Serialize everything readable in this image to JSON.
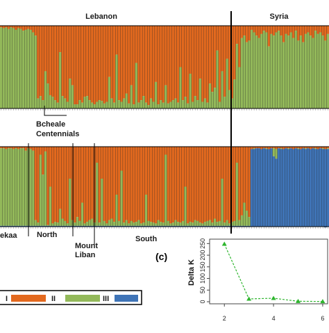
{
  "colors": {
    "I": "#e3691e",
    "II": "#93b95a",
    "III": "#3f74b7"
  },
  "labels": {
    "lebanon": "Lebanon",
    "syria": "Syria",
    "bcheale": "Bcheale",
    "centennials": "Centennials",
    "bekaa": "ekaa",
    "north": "North",
    "mount": "Mount",
    "liban": "Liban",
    "south": "South",
    "panel_c": "(c)"
  },
  "legend": [
    {
      "label": "I",
      "color": "#e3691e"
    },
    {
      "label": "II",
      "color": "#93b95a"
    },
    {
      "label": "III",
      "color": "#3f74b7"
    }
  ],
  "chart_data": [
    {
      "type": "bar",
      "subtype": "stacked-admixture",
      "K": 2,
      "series_colors": [
        "#e3691e",
        "#93b95a"
      ],
      "individuals": 134,
      "groups": [
        {
          "name": "Lebanon",
          "count": 102
        },
        {
          "name": "Syria",
          "count": 32
        }
      ],
      "orange_fraction": [
        0.02,
        0.03,
        0.02,
        0.04,
        0.02,
        0.03,
        0.05,
        0.03,
        0.04,
        0.06,
        0.05,
        0.04,
        0.05,
        0.08,
        0.12,
        0.88,
        0.85,
        0.9,
        0.55,
        0.7,
        0.84,
        0.86,
        0.9,
        0.93,
        0.32,
        0.85,
        0.88,
        0.92,
        0.64,
        0.72,
        0.95,
        0.95,
        0.9,
        0.93,
        0.86,
        0.85,
        0.9,
        0.93,
        0.95,
        0.92,
        0.9,
        0.91,
        0.94,
        0.92,
        0.62,
        0.88,
        0.93,
        0.35,
        0.9,
        0.92,
        0.88,
        0.82,
        0.94,
        0.72,
        0.95,
        0.45,
        0.93,
        0.9,
        0.85,
        0.93,
        0.96,
        0.88,
        0.92,
        0.68,
        0.95,
        0.9,
        0.93,
        0.72,
        0.94,
        0.92,
        0.9,
        0.88,
        0.93,
        0.5,
        0.9,
        0.86,
        0.94,
        0.58,
        0.92,
        0.85,
        0.9,
        0.64,
        0.92,
        0.88,
        0.93,
        0.7,
        0.8,
        0.75,
        0.3,
        0.92,
        0.55,
        0.86,
        0.4,
        0.78,
        0.88,
        0.65,
        0.22,
        0.5,
        0.15,
        0.12,
        0.2,
        0.18,
        0.05,
        0.08,
        0.12,
        0.15,
        0.1,
        0.06,
        0.08,
        0.25,
        0.1,
        0.12,
        0.08,
        0.06,
        0.12,
        0.2,
        0.1,
        0.12,
        0.08,
        0.15,
        0.06,
        0.18,
        0.12,
        0.2,
        0.1,
        0.08,
        0.12,
        0.15,
        0.06,
        0.1,
        0.08,
        0.12,
        0.18,
        0.1
      ]
    },
    {
      "type": "bar",
      "subtype": "stacked-admixture",
      "K": 3,
      "series_colors": [
        "#e3691e",
        "#93b95a",
        "#3f74b7"
      ],
      "individuals": 134,
      "groups": [
        {
          "name": "ekaa",
          "count": 14
        },
        {
          "name": "North",
          "count": 25
        },
        {
          "name": "Mount Liban",
          "count": 15
        },
        {
          "name": "South",
          "count": 48
        },
        {
          "name": "Syria",
          "count": 32
        }
      ],
      "orange_fraction": [
        0.02,
        0.02,
        0.03,
        0.02,
        0.02,
        0.03,
        0.02,
        0.03,
        0.02,
        0.02,
        0.05,
        0.02,
        0.03,
        0.05,
        0.92,
        0.95,
        0.1,
        0.35,
        0.06,
        0.98,
        0.5,
        0.96,
        0.94,
        0.95,
        0.78,
        0.9,
        0.93,
        0.96,
        0.4,
        0.92,
        0.95,
        0.88,
        0.93,
        0.7,
        0.96,
        0.94,
        0.92,
        0.9,
        0.95,
        0.2,
        0.95,
        0.4,
        0.93,
        0.96,
        0.92,
        0.9,
        0.94,
        0.6,
        0.93,
        0.3,
        0.95,
        0.92,
        0.96,
        0.93,
        0.95,
        0.94,
        0.92,
        0.96,
        0.95,
        0.6,
        0.93,
        0.94,
        0.95,
        0.96,
        0.92,
        0.94,
        0.95,
        0.1,
        0.93,
        0.96,
        0.95,
        0.92,
        0.94,
        0.95,
        0.93,
        0.5,
        0.96,
        0.94,
        0.95,
        0.92,
        0.93,
        0.95,
        0.96,
        0.94,
        0.93,
        0.92,
        0.95,
        0.9,
        0.94,
        0.93,
        0.4,
        0.95,
        0.92,
        0.96,
        0.94,
        0.93,
        0.2,
        0.92,
        0.86,
        0.7,
        0.8,
        0.88,
        0.03,
        0.02,
        0.02,
        0.02,
        0.03,
        0.02,
        0.02,
        0.03,
        0.02,
        0.02,
        0.03,
        0.02,
        0.02,
        0.03,
        0.02,
        0.02,
        0.02,
        0.03,
        0.02,
        0.02,
        0.03,
        0.02,
        0.02,
        0.02,
        0.03,
        0.02,
        0.02,
        0.03,
        0.02,
        0.02,
        0.03,
        0.02
      ],
      "blue_fraction": [
        0.01,
        0.01,
        0.01,
        0.01,
        0.01,
        0.01,
        0.01,
        0.01,
        0.01,
        0.01,
        0.01,
        0.01,
        0.01,
        0.01,
        0.01,
        0.01,
        0.01,
        0.01,
        0.01,
        0.01,
        0.01,
        0.01,
        0.01,
        0.01,
        0.01,
        0.01,
        0.01,
        0.01,
        0.01,
        0.01,
        0.01,
        0.01,
        0.01,
        0.01,
        0.01,
        0.01,
        0.01,
        0.01,
        0.01,
        0.01,
        0.01,
        0.01,
        0.01,
        0.01,
        0.01,
        0.01,
        0.01,
        0.01,
        0.01,
        0.01,
        0.01,
        0.01,
        0.01,
        0.01,
        0.01,
        0.01,
        0.01,
        0.01,
        0.01,
        0.01,
        0.01,
        0.01,
        0.01,
        0.01,
        0.01,
        0.01,
        0.01,
        0.01,
        0.01,
        0.01,
        0.01,
        0.01,
        0.01,
        0.01,
        0.01,
        0.01,
        0.01,
        0.01,
        0.01,
        0.01,
        0.01,
        0.01,
        0.01,
        0.01,
        0.01,
        0.01,
        0.01,
        0.01,
        0.01,
        0.01,
        0.01,
        0.01,
        0.01,
        0.01,
        0.01,
        0.01,
        0.01,
        0.01,
        0.01,
        0.01,
        0.01,
        0.01,
        0.97,
        0.97,
        0.98,
        0.98,
        0.97,
        0.98,
        0.97,
        0.97,
        0.98,
        0.88,
        0.85,
        0.98,
        0.97,
        0.97,
        0.98,
        0.97,
        0.98,
        0.97,
        0.98,
        0.97,
        0.97,
        0.98,
        0.97,
        0.98,
        0.97,
        0.98,
        0.97,
        0.97,
        0.98,
        0.97,
        0.98,
        0.97
      ]
    },
    {
      "type": "line",
      "title": "(c)",
      "xlabel": "",
      "ylabel": "Delta K",
      "x": [
        2,
        3,
        4,
        5,
        6
      ],
      "y": [
        248,
        12,
        15,
        2,
        1
      ],
      "xticks": [
        "2",
        "4",
        "6"
      ],
      "yticks": [
        "0",
        "50",
        "100",
        "150",
        "200",
        "250"
      ],
      "ylim": [
        0,
        260
      ],
      "xlim": [
        1.4,
        6.2
      ],
      "color": "#2db52d",
      "marker": "triangle",
      "linestyle": "dashed"
    }
  ]
}
